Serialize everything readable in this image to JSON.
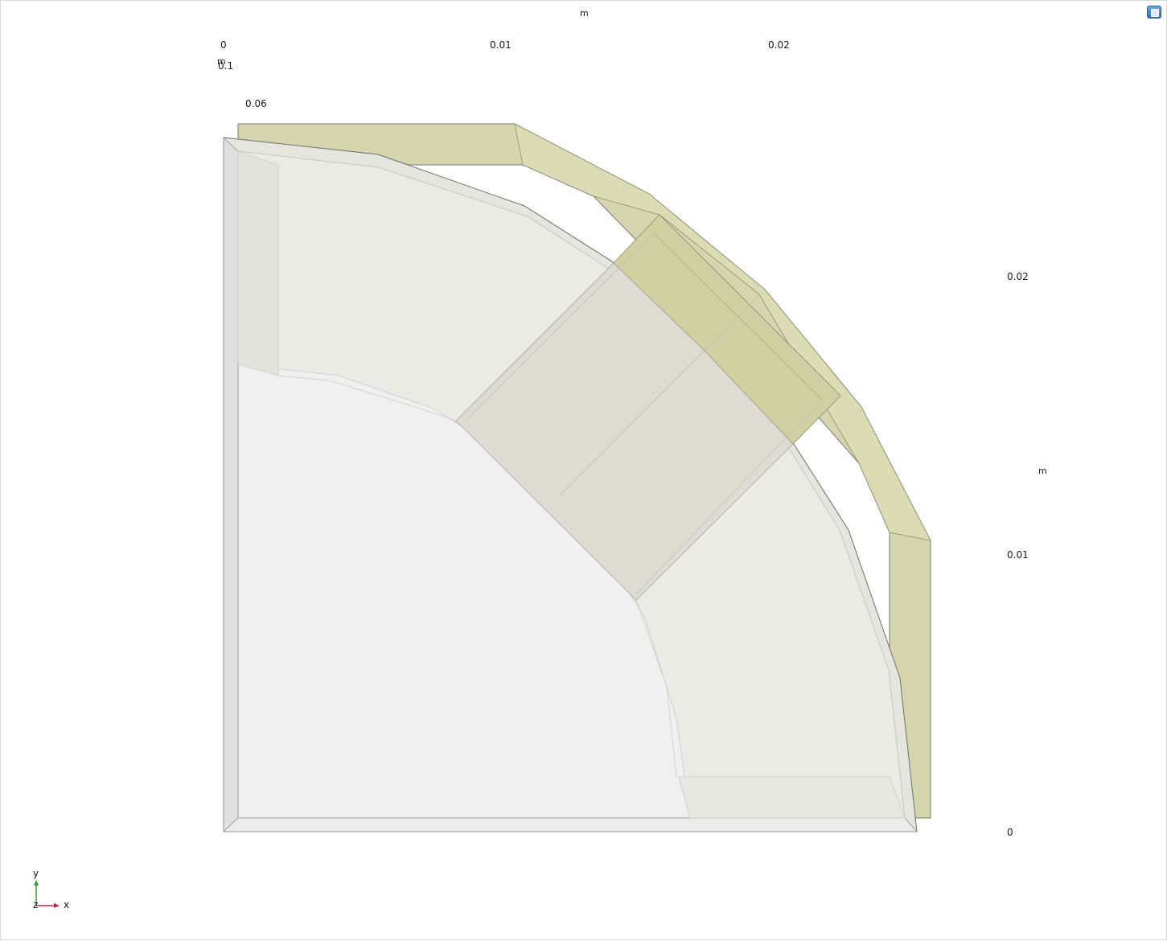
{
  "axes": {
    "x_unit": "m",
    "x_ticks": [
      "0",
      "0.01",
      "0.02"
    ],
    "y_unit": "m",
    "y_ticks": [
      "0.02",
      "0.01",
      "0"
    ],
    "z_unit": "m",
    "z_ticks": [
      "0.1",
      "0.06"
    ]
  },
  "triad": {
    "y": "y",
    "x": "x",
    "z": "z"
  },
  "colors": {
    "background": "#ffffff",
    "body_fill": "#ececE6",
    "magnet_fill": "#d6d6b0",
    "edge": "#7a7a70"
  }
}
